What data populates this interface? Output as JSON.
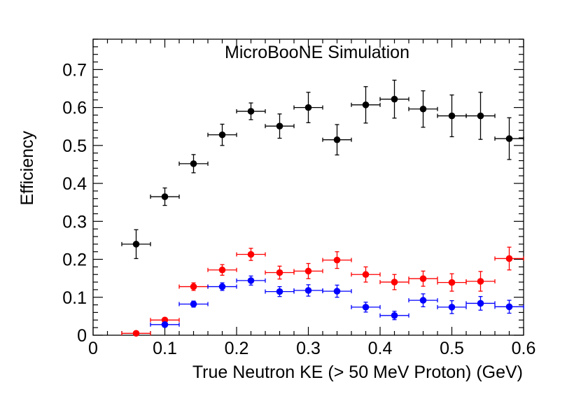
{
  "chart_data": {
    "type": "scatter",
    "title": "",
    "annotation": "MicroBooNE Simulation",
    "xlabel": "True Neutron KE (> 50 MeV Proton) (GeV)",
    "ylabel": "Efficiency",
    "xlim": [
      0,
      0.6
    ],
    "ylim": [
      0,
      0.78
    ],
    "x_tick_labels": [
      "0",
      "0.1",
      "0.2",
      "0.3",
      "0.4",
      "0.5",
      "0.6"
    ],
    "x_ticks": [
      0,
      0.1,
      0.2,
      0.3,
      0.4,
      0.5,
      0.6
    ],
    "y_tick_labels": [
      "0",
      "0.1",
      "0.2",
      "0.3",
      "0.4",
      "0.5",
      "0.6",
      "0.7"
    ],
    "y_ticks": [
      0,
      0.1,
      0.2,
      0.3,
      0.4,
      0.5,
      0.6,
      0.7
    ],
    "x_bin_half_width": 0.02,
    "x": [
      0.06,
      0.1,
      0.14,
      0.18,
      0.22,
      0.26,
      0.3,
      0.34,
      0.38,
      0.42,
      0.46,
      0.5,
      0.54,
      0.58
    ],
    "series": [
      {
        "name": "black",
        "color": "#000000",
        "values": [
          0.24,
          0.365,
          0.452,
          0.528,
          0.59,
          0.551,
          0.6,
          0.515,
          0.607,
          0.622,
          0.596,
          0.578,
          0.578,
          0.518
        ],
        "errors": [
          0.038,
          0.023,
          0.024,
          0.028,
          0.022,
          0.032,
          0.04,
          0.04,
          0.048,
          0.05,
          0.048,
          0.055,
          0.062,
          0.055
        ]
      },
      {
        "name": "red",
        "color": "#ff0000",
        "values": [
          0.005,
          0.04,
          0.128,
          0.172,
          0.213,
          0.165,
          0.169,
          0.198,
          0.16,
          0.14,
          0.149,
          0.139,
          0.142,
          0.202
        ],
        "errors": [
          0.004,
          0.005,
          0.01,
          0.014,
          0.016,
          0.017,
          0.02,
          0.022,
          0.02,
          0.02,
          0.02,
          0.023,
          0.026,
          0.03
        ]
      },
      {
        "name": "blue",
        "color": "#0000ff",
        "values": [
          null,
          0.028,
          0.082,
          0.128,
          0.144,
          0.115,
          0.118,
          0.116,
          0.074,
          0.052,
          0.092,
          0.074,
          0.084,
          0.075
        ],
        "errors": [
          null,
          0.006,
          0.008,
          0.01,
          0.012,
          0.013,
          0.015,
          0.016,
          0.013,
          0.011,
          0.017,
          0.017,
          0.018,
          0.017
        ]
      }
    ]
  }
}
